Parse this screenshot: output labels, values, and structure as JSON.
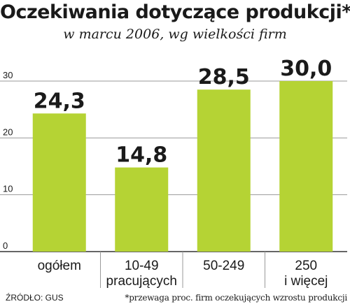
{
  "header": {
    "title": "Oczekiwania dotyczące produkcji*",
    "subtitle": "w marcu 2006, wg wielkości firm"
  },
  "footer": {
    "source": "ŹRÓDŁO: GUS",
    "note": "*przewaga proc. firm oczekujących wzrostu produkcji"
  },
  "colors": {
    "bar": "#b5d334",
    "grid": "#9a9a9a",
    "axis": "#333333"
  },
  "chart_data": {
    "type": "bar",
    "categories": [
      [
        "ogółem"
      ],
      [
        "10-49",
        "pracujących"
      ],
      [
        "50-249"
      ],
      [
        "250",
        "i więcej"
      ]
    ],
    "values": [
      24.3,
      14.8,
      28.5,
      30.0
    ],
    "value_labels": [
      "24,3",
      "14,8",
      "28,5",
      "30,0"
    ],
    "yticks": [
      0,
      10,
      20,
      30
    ],
    "ylim": [
      0,
      30
    ],
    "grid": true
  }
}
